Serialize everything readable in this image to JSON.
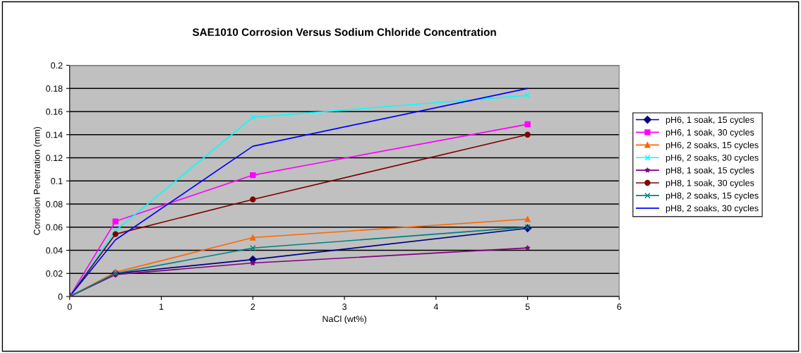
{
  "chart_data": {
    "type": "line",
    "title": "SAE1010 Corrosion Versus Sodium Chloride Concentration",
    "xlabel": "NaCl (wt%)",
    "ylabel": "Corrosion Penetration (mm)",
    "x": [
      0,
      0.5,
      2,
      5
    ],
    "xlim": [
      0,
      6
    ],
    "xticks": [
      0,
      1,
      2,
      3,
      4,
      5,
      6
    ],
    "ylim": [
      0,
      0.2
    ],
    "yticks": [
      0,
      0.02,
      0.04,
      0.06,
      0.08,
      0.1,
      0.12,
      0.14,
      0.16,
      0.18,
      0.2
    ],
    "grid": "y",
    "legend": "right",
    "series": [
      {
        "name": "pH6, 1 soak, 15 cycles",
        "color": "#000080",
        "marker": "diamond",
        "values": [
          0,
          0.02,
          0.032,
          0.059
        ]
      },
      {
        "name": "pH6, 1 soak, 30 cycles",
        "color": "#ff00ff",
        "marker": "square",
        "values": [
          0,
          0.065,
          0.105,
          0.149
        ]
      },
      {
        "name": "pH6, 2 soaks, 15 cycles",
        "color": "#ff6600",
        "marker": "triangle",
        "values": [
          0,
          0.021,
          0.051,
          0.067
        ]
      },
      {
        "name": "pH6, 2 soaks, 30 cycles",
        "color": "#00ffff",
        "marker": "cross",
        "values": [
          0,
          0.057,
          0.155,
          0.174
        ]
      },
      {
        "name": "pH8, 1 soak, 15 cycles",
        "color": "#800080",
        "marker": "star",
        "values": [
          0,
          0.019,
          0.029,
          0.042
        ]
      },
      {
        "name": "pH8, 1 soak, 30 cycles",
        "color": "#800000",
        "marker": "circle",
        "values": [
          0,
          0.054,
          0.084,
          0.14
        ]
      },
      {
        "name": "pH8, 2 soaks, 15 cycles",
        "color": "#008080",
        "marker": "cross",
        "values": [
          0,
          0.02,
          0.042,
          0.06
        ]
      },
      {
        "name": "pH8, 2 soaks, 30 cycles",
        "color": "#0000ff",
        "marker": "none",
        "values": [
          0,
          0.049,
          0.13,
          0.18
        ]
      }
    ]
  }
}
